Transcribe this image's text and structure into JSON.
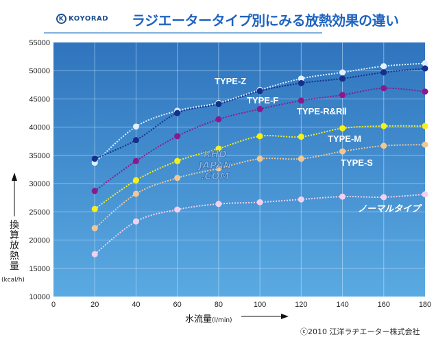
{
  "header": {
    "brand": "KOYORAD",
    "title": "ラジエータータイプ別にみる放熱効果の違い"
  },
  "watermark": "RHD JAPAN .COM",
  "copyright": "ⓒ2010 江洋ラヂエーター株式会社",
  "colors": {
    "bg_top": "#2f74bd",
    "bg_bottom": "#5aaae2",
    "title": "#1e63c0"
  },
  "chart_data": {
    "type": "line",
    "title": "",
    "xlabel": "水流量",
    "xunit": "(l/min)",
    "ylabel": "換算放熱量",
    "yunit": "(kcal/h)",
    "xlim": [
      0,
      180
    ],
    "ylim": [
      10000,
      55000
    ],
    "xticks": [
      0,
      20,
      40,
      60,
      80,
      100,
      120,
      140,
      160,
      180
    ],
    "yticks": [
      10000,
      15000,
      20000,
      25000,
      30000,
      35000,
      40000,
      45000,
      50000,
      55000
    ],
    "grid": true,
    "x": [
      20,
      40,
      60,
      80,
      100,
      120,
      140,
      160,
      180
    ],
    "series": [
      {
        "name": "TYPE-Z",
        "color": "#dff0ff",
        "values": [
          33700,
          40100,
          42900,
          44300,
          46600,
          48600,
          49700,
          50800,
          51300
        ]
      },
      {
        "name": "TYPE-F",
        "color": "#152f8a",
        "values": [
          34400,
          37700,
          42500,
          44100,
          46400,
          47800,
          48600,
          49700,
          50400
        ]
      },
      {
        "name": "TYPE-R&RⅡ",
        "color": "#8a1a8c",
        "values": [
          28700,
          34000,
          38400,
          41400,
          43200,
          44700,
          45700,
          46900,
          46300
        ]
      },
      {
        "name": "TYPE-M",
        "color": "#f4f01e",
        "values": [
          25500,
          30600,
          34000,
          36200,
          38400,
          38300,
          39800,
          40200,
          40200
        ]
      },
      {
        "name": "TYPE-S",
        "color": "#f0c896",
        "values": [
          22100,
          28200,
          31000,
          32700,
          34400,
          34400,
          35700,
          36700,
          36900
        ]
      },
      {
        "name": "ノーマルタイプ",
        "color": "#f2d0ee",
        "values": [
          17500,
          23300,
          25400,
          26400,
          26700,
          27200,
          27700,
          27600,
          28100
        ]
      }
    ]
  }
}
